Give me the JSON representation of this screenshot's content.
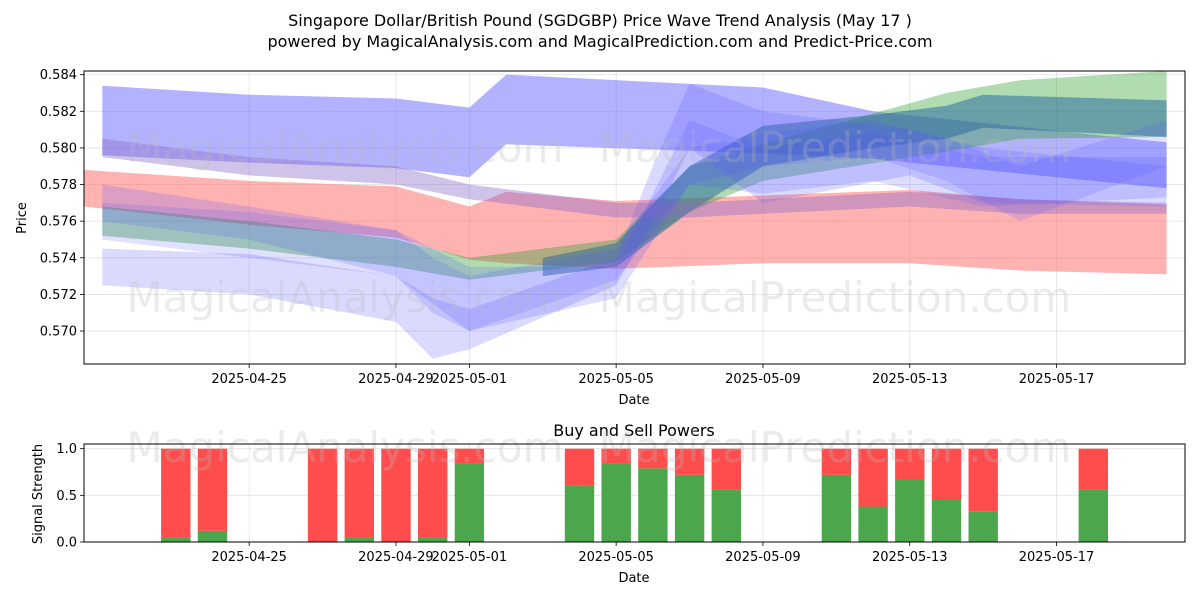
{
  "figure": {
    "title_line1": "Singapore Dollar/British Pound (SGDGBP) Price Wave Trend Analysis (May 17 )",
    "title_line2": "powered by MagicalAnalysis.com and MagicalPrediction.com and Predict-Price.com",
    "watermarks": [
      "MagicalAnalysis.com",
      "MagicalPrediction.com"
    ]
  },
  "chart_data": [
    {
      "type": "area",
      "title": "",
      "xlabel": "Date",
      "ylabel": "Price",
      "x_range": [
        "2025-04-20T12:00",
        "2025-05-20T12:00"
      ],
      "ylim": [
        0.5682,
        0.5842
      ],
      "x_ticks": [
        "2025-04-25",
        "2025-04-29",
        "2025-05-01",
        "2025-05-05",
        "2025-05-09",
        "2025-05-13",
        "2025-05-17"
      ],
      "y_ticks": [
        0.57,
        0.572,
        0.574,
        0.576,
        0.578,
        0.58,
        0.582,
        0.584
      ],
      "y_tick_labels": [
        "0.570",
        "0.572",
        "0.574",
        "0.576",
        "0.578",
        "0.580",
        "0.582",
        "0.584"
      ],
      "grid": true,
      "bands": [
        {
          "color": "#6666ff",
          "opacity": 0.5,
          "x": [
            "2025-04-21",
            "2025-04-25",
            "2025-04-29",
            "2025-05-01",
            "2025-05-02",
            "2025-05-09",
            "2025-05-12",
            "2025-05-20"
          ],
          "upper": [
            0.5834,
            0.5829,
            0.5827,
            0.5822,
            0.584,
            0.5833,
            0.582,
            0.5803
          ],
          "lower": [
            0.5796,
            0.5792,
            0.5789,
            0.5784,
            0.5802,
            0.5797,
            0.5794,
            0.5778
          ]
        },
        {
          "color": "#ff6666",
          "opacity": 0.5,
          "x": [
            "2025-04-20T12:00",
            "2025-04-25",
            "2025-04-29",
            "2025-05-01",
            "2025-05-02",
            "2025-05-05",
            "2025-05-09",
            "2025-05-13",
            "2025-05-16",
            "2025-05-20"
          ],
          "upper": [
            0.5788,
            0.5782,
            0.5779,
            0.5768,
            0.5776,
            0.5771,
            0.5774,
            0.5777,
            0.5772,
            0.5769
          ],
          "lower": [
            0.5768,
            0.5758,
            0.5751,
            0.5739,
            0.5737,
            0.5734,
            0.5737,
            0.5737,
            0.5733,
            0.5731
          ]
        },
        {
          "color": "#33a033",
          "opacity": 0.38,
          "x": [
            "2025-04-21",
            "2025-04-25",
            "2025-04-29",
            "2025-05-01",
            "2025-05-05",
            "2025-05-07",
            "2025-05-09",
            "2025-05-14",
            "2025-05-16",
            "2025-05-20"
          ],
          "upper": [
            0.5768,
            0.576,
            0.575,
            0.574,
            0.575,
            0.579,
            0.5802,
            0.583,
            0.5837,
            0.5842
          ],
          "lower": [
            0.5752,
            0.5745,
            0.5735,
            0.5728,
            0.5738,
            0.5765,
            0.5782,
            0.5798,
            0.5805,
            0.5806
          ]
        },
        {
          "color": "#2e6e9e",
          "opacity": 0.55,
          "x": [
            "2025-05-03",
            "2025-05-05",
            "2025-05-07",
            "2025-05-09",
            "2025-05-12",
            "2025-05-14",
            "2025-05-15",
            "2025-05-20"
          ],
          "upper": [
            0.574,
            0.5748,
            0.579,
            0.5812,
            0.5818,
            0.5823,
            0.5829,
            0.5826
          ],
          "lower": [
            0.573,
            0.5735,
            0.5765,
            0.579,
            0.58,
            0.5805,
            0.5811,
            0.5806
          ]
        },
        {
          "color": "#5555ff",
          "opacity": 0.22,
          "x": [
            "2025-04-21",
            "2025-04-25",
            "2025-04-29",
            "2025-04-30",
            "2025-05-01",
            "2025-05-05",
            "2025-05-06",
            "2025-05-07",
            "2025-05-09",
            "2025-05-13",
            "2025-05-15",
            "2025-05-20"
          ],
          "upper": [
            0.5745,
            0.5742,
            0.573,
            0.5718,
            0.5712,
            0.574,
            0.579,
            0.5835,
            0.582,
            0.581,
            0.58,
            0.579
          ],
          "lower": [
            0.5725,
            0.572,
            0.5705,
            0.5685,
            0.569,
            0.5725,
            0.576,
            0.58,
            0.577,
            0.5785,
            0.577,
            0.5768
          ]
        },
        {
          "color": "#5555ff",
          "opacity": 0.2,
          "x": [
            "2025-04-21",
            "2025-04-25",
            "2025-04-29",
            "2025-05-01",
            "2025-05-05",
            "2025-05-07",
            "2025-05-09",
            "2025-05-12",
            "2025-05-15",
            "2025-05-20"
          ],
          "upper": [
            0.578,
            0.5768,
            0.5755,
            0.5735,
            0.5735,
            0.5815,
            0.58,
            0.5808,
            0.5795,
            0.5795
          ],
          "lower": [
            0.576,
            0.575,
            0.573,
            0.57,
            0.5718,
            0.578,
            0.5775,
            0.5782,
            0.5768,
            0.5773
          ]
        },
        {
          "color": "#8a6acb",
          "opacity": 0.4,
          "x": [
            "2025-04-21",
            "2025-04-25",
            "2025-04-29",
            "2025-05-01",
            "2025-05-05",
            "2025-05-07",
            "2025-05-09",
            "2025-05-13",
            "2025-05-16",
            "2025-05-20"
          ],
          "upper": [
            0.5805,
            0.5795,
            0.579,
            0.578,
            0.577,
            0.577,
            0.5772,
            0.5776,
            0.5772,
            0.577
          ],
          "lower": [
            0.5795,
            0.5785,
            0.578,
            0.5772,
            0.5762,
            0.5762,
            0.5764,
            0.5768,
            0.5764,
            0.5764
          ]
        },
        {
          "color": "#5555ff",
          "opacity": 0.18,
          "x": [
            "2025-04-21",
            "2025-04-25",
            "2025-04-29",
            "2025-04-30",
            "2025-05-01",
            "2025-05-05",
            "2025-05-07",
            "2025-05-09",
            "2025-05-12",
            "2025-05-14",
            "2025-05-16",
            "2025-05-20"
          ],
          "upper": [
            0.577,
            0.5765,
            0.5755,
            0.574,
            0.573,
            0.5745,
            0.58,
            0.5808,
            0.5815,
            0.5805,
            0.579,
            0.5815
          ],
          "lower": [
            0.575,
            0.574,
            0.573,
            0.571,
            0.57,
            0.5728,
            0.578,
            0.579,
            0.5795,
            0.5782,
            0.576,
            0.579
          ]
        }
      ]
    },
    {
      "type": "bar",
      "title": "Buy and Sell Powers",
      "xlabel": "Date",
      "ylabel": "Signal Strength",
      "x_range": [
        "2025-04-20T12:00",
        "2025-05-20T12:00"
      ],
      "ylim": [
        0,
        1.05
      ],
      "x_ticks": [
        "2025-04-25",
        "2025-04-29",
        "2025-05-01",
        "2025-05-05",
        "2025-05-09",
        "2025-05-13",
        "2025-05-17"
      ],
      "y_ticks": [
        0.0,
        0.5,
        1.0
      ],
      "y_tick_labels": [
        "0.0",
        "0.5",
        "1.0"
      ],
      "grid": true,
      "colors": {
        "buy": "#4ca64c",
        "sell": "#ff4c4c"
      },
      "x": [
        "2025-04-23",
        "2025-04-24",
        "2025-04-27",
        "2025-04-28",
        "2025-04-29",
        "2025-04-30",
        "2025-05-01",
        "2025-05-04",
        "2025-05-05",
        "2025-05-06",
        "2025-05-07",
        "2025-05-08",
        "2025-05-11",
        "2025-05-12",
        "2025-05-13",
        "2025-05-14",
        "2025-05-15",
        "2025-05-18"
      ],
      "series": [
        {
          "name": "buy",
          "values": [
            0.05,
            0.12,
            0.0,
            0.05,
            0.0,
            0.05,
            0.84,
            0.61,
            0.84,
            0.79,
            0.72,
            0.56,
            0.72,
            0.38,
            0.67,
            0.45,
            0.33,
            0.56
          ]
        },
        {
          "name": "sell",
          "values": [
            0.95,
            0.88,
            1.0,
            0.95,
            1.0,
            0.95,
            0.16,
            0.39,
            0.16,
            0.21,
            0.28,
            0.44,
            0.28,
            0.62,
            0.33,
            0.55,
            0.67,
            0.44
          ]
        }
      ]
    }
  ]
}
